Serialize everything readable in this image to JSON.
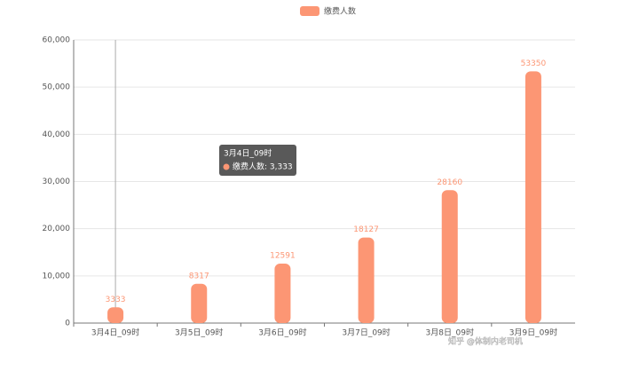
{
  "chart_data": {
    "type": "bar",
    "legend": "缴费人数",
    "categories": [
      "3月4日_09时",
      "3月5日_09时",
      "3月6日_09时",
      "3月7日_09时",
      "3月8日_09时",
      "3月9日_09时"
    ],
    "series": [
      {
        "name": "缴费人数",
        "color": "#fc9674",
        "values": [
          3333,
          8317,
          12591,
          18127,
          28160,
          53350
        ]
      }
    ],
    "ylim": [
      0,
      60000
    ],
    "yticks": [
      0,
      {
        "value": 10000,
        "label": "10,000"
      },
      {
        "value": 20000,
        "label": "20,000"
      },
      {
        "value": 30000,
        "label": "30,000"
      },
      {
        "value": 40000,
        "label": "40,000"
      },
      {
        "value": 50000,
        "label": "50,000"
      },
      {
        "value": 60000,
        "label": "60,000"
      }
    ],
    "grid": true,
    "tooltip": {
      "title": "3月4日_09时",
      "text": "缴费人数: 3,333"
    },
    "watermark": "知乎 @体制内老司机"
  }
}
